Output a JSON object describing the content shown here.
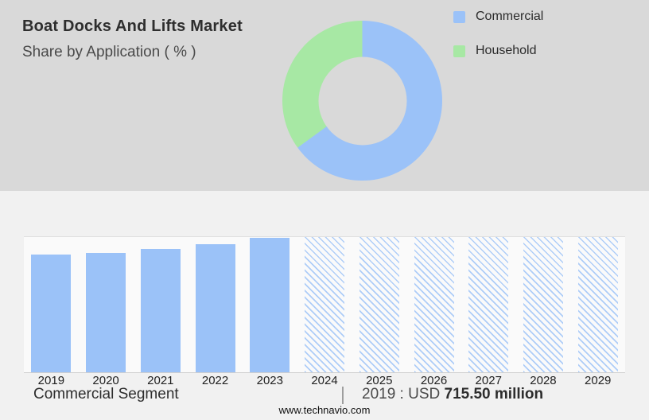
{
  "header": {
    "title": "Boat Docks And Lifts Market",
    "subtitle": "Share by Application ( % )"
  },
  "legend": {
    "items": [
      {
        "label": "Commercial",
        "color": "#9bc2f8"
      },
      {
        "label": "Household",
        "color": "#a7e8a4"
      }
    ]
  },
  "chart_data": [
    {
      "type": "pie",
      "title": "Boat Docks And Lifts Market - Share by Application ( % )",
      "labels": [
        "Commercial",
        "Household"
      ],
      "values": [
        65,
        35
      ],
      "colors": [
        "#9bc2f8",
        "#a7e8a4"
      ],
      "donut": true,
      "legend_position": "right"
    },
    {
      "type": "bar",
      "title": "Commercial Segment (USD million)",
      "categories": [
        "2019",
        "2020",
        "2021",
        "2022",
        "2023",
        "2024",
        "2025",
        "2026",
        "2027",
        "2028",
        "2029"
      ],
      "values": [
        715.5,
        722,
        748,
        778,
        815,
        null,
        null,
        null,
        null,
        null,
        null
      ],
      "ylim": [
        0,
        820
      ],
      "bar_color": "#9bc2f8",
      "forecast_style": "hatched-full-height",
      "grid": "top-and-baseline-only",
      "xlabel": "",
      "ylabel": ""
    }
  ],
  "footer": {
    "segment_label": "Commercial Segment",
    "separator": "|",
    "value_label": "2019 : USD",
    "value_bold": "715.50 million",
    "website": "www.technavio.com"
  }
}
